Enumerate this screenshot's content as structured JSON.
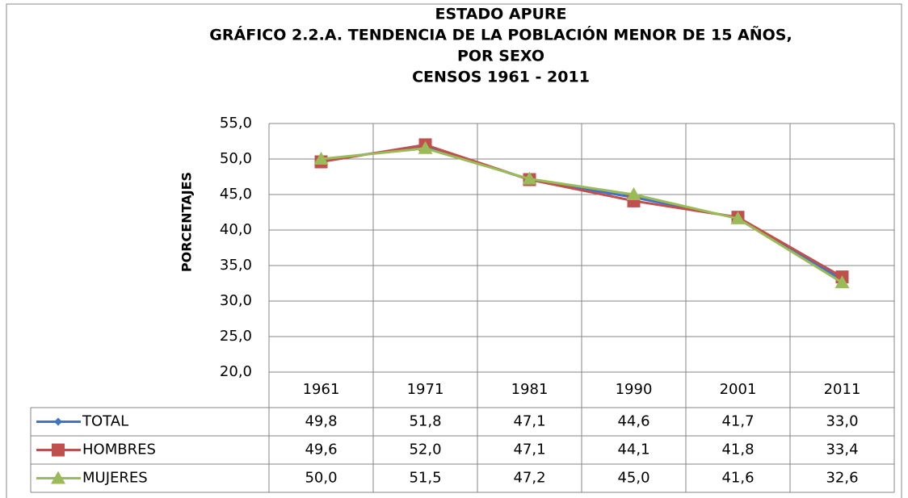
{
  "chart_data": {
    "type": "line",
    "title": [
      "ESTADO APURE",
      "GRÁFICO 2.2.A. TENDENCIA DE LA POBLACIÓN MENOR DE 15 AÑOS,",
      "POR SEXO",
      "CENSOS 1961 - 2011"
    ],
    "y_label": "PORCENTAJES",
    "categories": [
      "1961",
      "1971",
      "1981",
      "1990",
      "2001",
      "2011"
    ],
    "series": [
      {
        "name": "TOTAL",
        "color": "#4472c4",
        "marker": "diamond",
        "values": [
          49.8,
          51.8,
          47.1,
          44.6,
          41.7,
          33.0
        ],
        "value_labels": [
          "49,8",
          "51,8",
          "47,1",
          "44,6",
          "41,7",
          "33,0"
        ]
      },
      {
        "name": "HOMBRES",
        "color": "#c0504d",
        "marker": "square",
        "values": [
          49.6,
          52.0,
          47.1,
          44.1,
          41.8,
          33.4
        ],
        "value_labels": [
          "49,6",
          "52,0",
          "47,1",
          "44,1",
          "41,8",
          "33,4"
        ]
      },
      {
        "name": "MUJERES",
        "color": "#9bbb59",
        "marker": "triangle",
        "values": [
          50.0,
          51.5,
          47.2,
          45.0,
          41.6,
          32.6
        ],
        "value_labels": [
          "50,0",
          "51,5",
          "47,2",
          "45,0",
          "41,6",
          "32,6"
        ]
      }
    ],
    "ylim": [
      20,
      55
    ],
    "yticks": [
      {
        "value": 20,
        "label": "20,0"
      },
      {
        "value": 25,
        "label": "25,0"
      },
      {
        "value": 30,
        "label": "30,0"
      },
      {
        "value": 35,
        "label": "35,0"
      },
      {
        "value": 40,
        "label": "40,0"
      },
      {
        "value": 45,
        "label": "45,0"
      },
      {
        "value": 50,
        "label": "50,0"
      },
      {
        "value": 55,
        "label": "55,0"
      }
    ],
    "grid": true
  }
}
